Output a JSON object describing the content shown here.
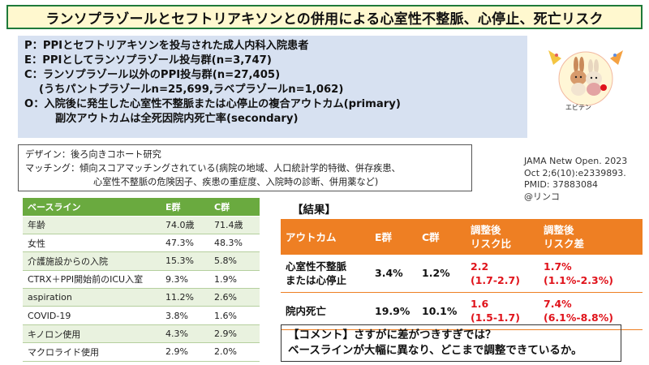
{
  "title": "ランソプラゾールとセフトリアキソンとの併用による心室性不整脈、心停止、死亡リスク",
  "pico": {
    "p": "P：PPIとセフトリアキソンを投与された成人内科入院患者",
    "e": "E：PPIとしてランソプラゾール投与群(n=3,747)",
    "c": "C：ランソプラゾール以外のPPI投与群(n=27,405)",
    "c_sub": "(うちパントプラゾールn=25,699,ラベプラゾールn=1,062)",
    "o": "O：入院後に発生した心室性不整脈または心停止の複合アウトカム(primary)",
    "o_sub": "副次アウトカムは全死因院内死亡率(secondary)"
  },
  "logo": {
    "label": "エビテン",
    "icon": "rabbit-mascot-icon"
  },
  "design": {
    "design_key": "デザイン：",
    "design_val": "後ろ向きコホート研究",
    "matching_key": "マッチング：",
    "matching_val": "傾向スコアマッチングされている(病院の地域、人口統計学的特徴、併存疾患、",
    "matching_cont": "心室性不整脈の危険因子、疾患の重症度、入院時の診断、併用薬など)"
  },
  "reference": {
    "journal": "JAMA Netw Open. 2023",
    "issue": "Oct 2;6(10):e2339893.",
    "pmid": "PMID: 37883084",
    "author": "@リンコ"
  },
  "baseline": {
    "headers": [
      "ベースライン",
      "E群",
      "C群"
    ],
    "rows": [
      [
        "年齢",
        "74.0歳",
        "71.4歳"
      ],
      [
        "女性",
        "47.3%",
        "48.3%"
      ],
      [
        "介護施設からの入院",
        "15.3%",
        "5.8%"
      ],
      [
        "CTRX＋PPI開始前のICU入室",
        "9.3%",
        "1.9%"
      ],
      [
        "aspiration",
        "11.2%",
        "2.6%"
      ],
      [
        "COVID-19",
        "3.8%",
        "1.6%"
      ],
      [
        "キノロン使用",
        "4.3%",
        "2.9%"
      ],
      [
        "マクロライド使用",
        "2.9%",
        "2.0%"
      ]
    ]
  },
  "results": {
    "label": "【結果】",
    "headers": {
      "outcome": "アウトカム",
      "e": "E群",
      "c": "C群",
      "rr1": "調整後",
      "rr2": "リスク比",
      "rd1": "調整後",
      "rd2": "リスク差"
    },
    "rows": [
      {
        "outcome1": "心室性不整脈",
        "outcome2": "または心停止",
        "e": "3.4%",
        "c": "1.2%",
        "rr": "2.2",
        "rr_ci": "(1.7-2.7)",
        "rd": "1.7%",
        "rd_ci": "(1.1%-2.3%)"
      },
      {
        "outcome1": "院内死亡",
        "outcome2": "",
        "e": "19.9%",
        "c": "10.1%",
        "rr": "1.6",
        "rr_ci": "(1.5-1.7)",
        "rd": "7.4%",
        "rd_ci": "(6.1%-8.8%)"
      }
    ]
  },
  "comment": {
    "line1": "【コメント】さすがに差がつきすぎでは？",
    "line2": "ベースラインが大幅に異なり、どこまで調整できているか。"
  },
  "colors": {
    "title_border": "#1f7a3a",
    "title_bg": "#fff8cf",
    "pico_bg": "#d7e1f1",
    "baseline_header": "#6aaa3f",
    "results_header": "#ee7f23",
    "highlight_red": "#e0131b"
  }
}
